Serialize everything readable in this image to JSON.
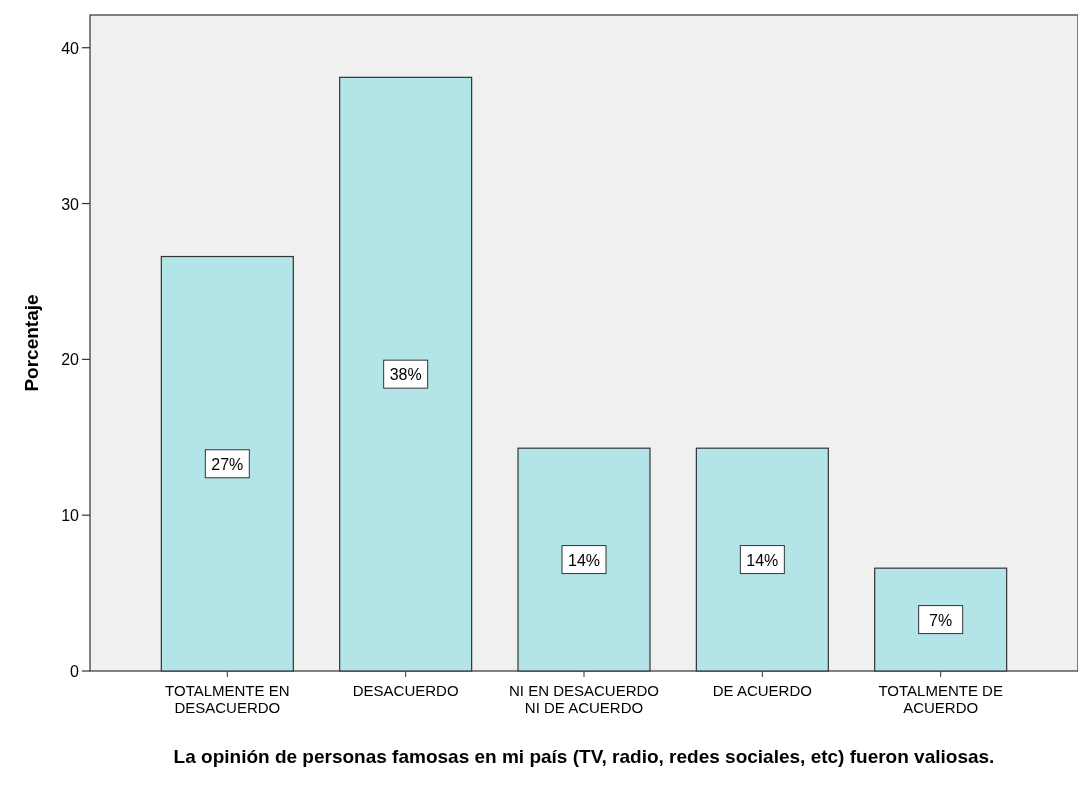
{
  "chart_data": {
    "type": "bar",
    "xlabel": "La opinión de personas famosas en mi país (TV, radio, redes sociales, etc) fueron valiosas.",
    "ylabel": "Porcentaje",
    "categories": [
      "TOTALMENTE EN DESACUERDO",
      "DESACUERDO",
      "NI EN DESACUERDO NI DE ACUERDO",
      "DE ACUERDO",
      "TOTALMENTE DE ACUERDO"
    ],
    "values": [
      26.6,
      38.1,
      14.3,
      14.3,
      6.6
    ],
    "value_labels": [
      "27%",
      "38%",
      "14%",
      "14%",
      "7%"
    ],
    "color": "#b3e5e8",
    "ylim": [
      0,
      42.1
    ],
    "yticks": [
      0,
      10,
      20,
      30,
      40
    ],
    "grid": false
  }
}
